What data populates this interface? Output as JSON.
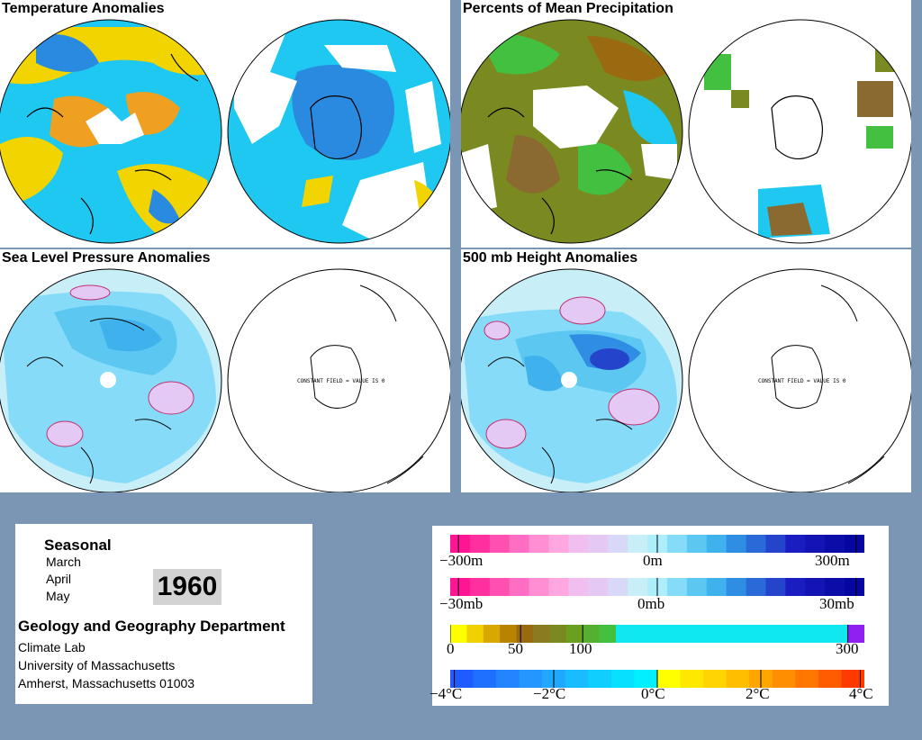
{
  "panels": {
    "temperature": {
      "title": "Temperature Anomalies"
    },
    "precip": {
      "title": "Percents of Mean Precipitation"
    },
    "slp": {
      "title": "Sea Level Pressure Anomalies",
      "constant_label": "CONSTANT FIELD = VALUE IS 0"
    },
    "height": {
      "title": "500 mb Height Anomalies",
      "constant_label": "CONSTANT FIELD = VALUE IS 0"
    }
  },
  "info": {
    "seasonal": "Seasonal",
    "months": [
      "March",
      "April",
      "May"
    ],
    "year": "1960",
    "department": "Geology and Geography Department",
    "address_lines": [
      "Climate Lab",
      "University of Massachusetts",
      "Amherst, Massachusetts 01003"
    ]
  },
  "legends": {
    "height": {
      "labels": [
        "−300m",
        "0m",
        "300m"
      ],
      "colors": [
        "#ff1493",
        "#ff2fa0",
        "#ff4fb0",
        "#ff6ec2",
        "#ff8ed2",
        "#ffa8e0",
        "#f0bff0",
        "#e4c9f4",
        "#d8d8f8",
        "#c8eef8",
        "#aeeefb",
        "#86dcf8",
        "#5cc8f2",
        "#3fb1ec",
        "#2f8ee4",
        "#2a6ad8",
        "#2444cc",
        "#1a1ec0",
        "#1414b4",
        "#0c0ca8",
        "#0606a0"
      ]
    },
    "slp": {
      "labels": [
        "−30mb",
        "0mb",
        "30mb"
      ],
      "colors": [
        "#ff1493",
        "#ff2fa0",
        "#ff4fb0",
        "#ff6ec2",
        "#ff8ed2",
        "#ffa8e0",
        "#f0bff0",
        "#e4c9f4",
        "#d8d8f8",
        "#c8eef8",
        "#aeeefb",
        "#86dcf8",
        "#5cc8f2",
        "#3fb1ec",
        "#2f8ee4",
        "#2a6ad8",
        "#2444cc",
        "#1a1ec0",
        "#1414b4",
        "#0c0ca8",
        "#0606a0"
      ]
    },
    "precip": {
      "labels": [
        "0",
        "50",
        "100",
        "300"
      ],
      "colors": [
        "#ffff00",
        "#f0d000",
        "#d8a800",
        "#b88400",
        "#9a6a10",
        "#8a7a20",
        "#7a8a20",
        "#6aa020",
        "#56b030",
        "#44c040",
        "#10e8f0",
        "#10e8f0",
        "#10e8f0",
        "#10e8f0",
        "#10e8f0",
        "#10e8f0",
        "#10e8f0",
        "#10e8f0",
        "#10e8f0",
        "#10e8f0",
        "#10e8f0",
        "#10e8f0",
        "#10e8f0",
        "#10e8f0",
        "#9020f0"
      ]
    },
    "temp": {
      "labels": [
        "−4°C",
        "−2°C",
        "0°C",
        "2°C",
        "4°C"
      ],
      "colors": [
        "#1e5cff",
        "#2070ff",
        "#2284ff",
        "#2496ff",
        "#20a8ff",
        "#18bcff",
        "#10cfff",
        "#08e0ff",
        "#00f0ff",
        "#ffff00",
        "#ffe800",
        "#ffd400",
        "#ffbe00",
        "#ffa600",
        "#ff8e00",
        "#ff7600",
        "#ff5c00",
        "#ff3a00"
      ]
    },
    "colors": {
      "cold": "#1e90ff",
      "warm": "#ffd700",
      "cyan": "#00e5ff",
      "deep_blue": "#2b3fd8",
      "light_blue": "#a6d8f5",
      "pink": "#f0c8f0",
      "brown": "#8a6a30",
      "green": "#6aa84f"
    }
  }
}
